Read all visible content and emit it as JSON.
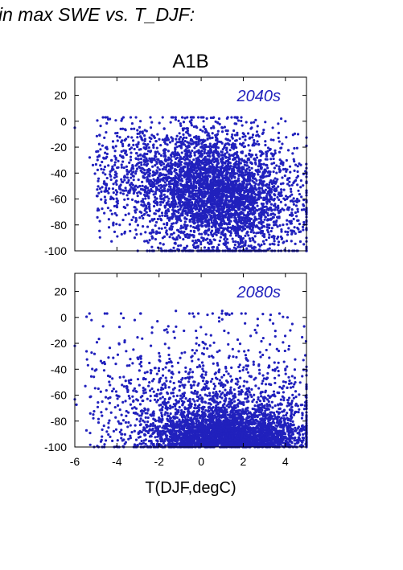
{
  "page": {
    "title": "in max SWE vs. T_DJF:"
  },
  "colors": {
    "points": "#2121bd",
    "axes": "#000000",
    "background": "#ffffff"
  },
  "chart_data": {
    "type": "scatter",
    "scenario": "A1B",
    "xlabel": "T(DJF,degC)",
    "xlim": [
      -6,
      5
    ],
    "xticks": [
      -6,
      -4,
      -2,
      0,
      2,
      4
    ],
    "ylim": [
      -100,
      34
    ],
    "yticks": [
      20,
      0,
      -20,
      -40,
      -60,
      -80,
      -100
    ],
    "grid": false,
    "panels": [
      {
        "label": "2040s",
        "n_points": 4200,
        "distribution_note": "dense cloud, x mostly -3 to 5, y mostly -100 to -10; center near (1, -65)",
        "anchors": [
          [
            -6,
            -5
          ],
          [
            -4.8,
            -52
          ],
          [
            -4.3,
            -60
          ],
          [
            2.4,
            -5
          ],
          [
            3.8,
            2
          ],
          [
            4.0,
            0
          ],
          [
            4.6,
            -10
          ]
        ]
      },
      {
        "label": "2080s",
        "n_points": 4200,
        "distribution_note": "dense at y -100 to -60 for x 0 to 5, sparse above; center near (1.5, -88)",
        "anchors": [
          [
            -6,
            -22
          ],
          [
            -5.5,
            -53
          ],
          [
            -4.4,
            -85
          ],
          [
            -1.2,
            5
          ],
          [
            0.3,
            2
          ],
          [
            1.0,
            5
          ],
          [
            3.3,
            2
          ],
          [
            4.1,
            0
          ]
        ]
      }
    ]
  }
}
